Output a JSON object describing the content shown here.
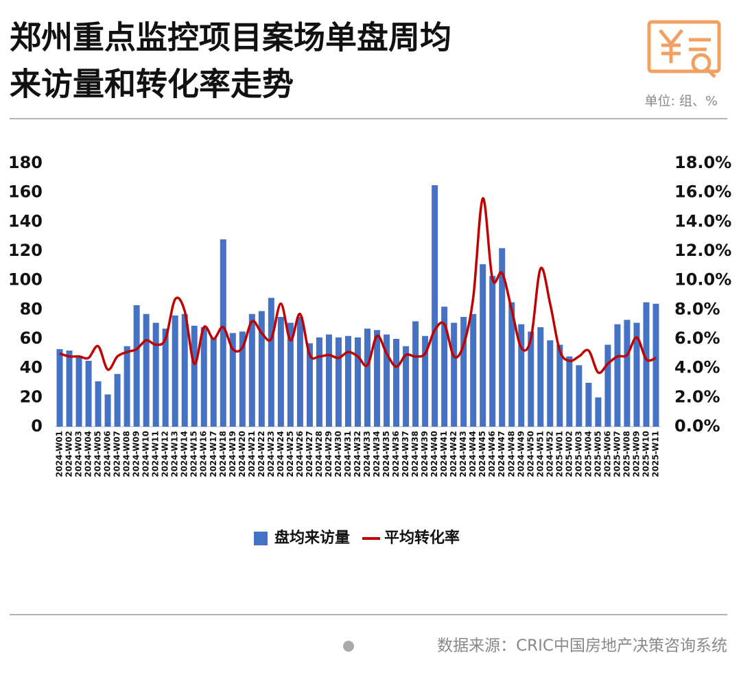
{
  "chart_data": {
    "type": "bar_line",
    "title_lines": [
      "郑州重点监控项目案场单盘周均",
      "来访量和转化率走势"
    ],
    "unit": "单位: 组、%",
    "source": "数据来源：CRIC中国房地产决策咨询系统",
    "categories": [
      "2024-W01",
      "2024-W02",
      "2024-W03",
      "2024-W04",
      "2024-W05",
      "2024-W06",
      "2024-W07",
      "2024-W08",
      "2024-W09",
      "2024-W10",
      "2024-W11",
      "2024-W12",
      "2024-W13",
      "2024-W14",
      "2024-W15",
      "2024-W16",
      "2024-W17",
      "2024-W18",
      "2024-W19",
      "2024-W20",
      "2024-W21",
      "2024-W22",
      "2024-W23",
      "2024-W24",
      "2024-W25",
      "2024-W26",
      "2024-W27",
      "2024-W28",
      "2024-W29",
      "2024-W30",
      "2024-W31",
      "2024-W32",
      "2024-W33",
      "2024-W34",
      "2024-W35",
      "2024-W36",
      "2024-W37",
      "2024-W38",
      "2024-W39",
      "2024-W40",
      "2024-W41",
      "2024-W42",
      "2024-W43",
      "2024-W44",
      "2024-W45",
      "2024-W46",
      "2024-W47",
      "2024-W48",
      "2024-W49",
      "2024-W50",
      "2024-W51",
      "2024-W52",
      "2025-W01",
      "2025-W02",
      "2025-W03",
      "2025-W04",
      "2025-W05",
      "2025-W06",
      "2025-W07",
      "2025-W08",
      "2025-W09",
      "2025-W10",
      "2025-W11"
    ],
    "series": [
      {
        "name": "盘均来访量",
        "type": "bar",
        "color": "#4472c4",
        "values": [
          53,
          52,
          48,
          45,
          31,
          22,
          36,
          55,
          83,
          77,
          71,
          67,
          76,
          77,
          69,
          68,
          61,
          128,
          64,
          65,
          77,
          79,
          88,
          75,
          71,
          75,
          57,
          61,
          63,
          61,
          62,
          61,
          67,
          66,
          63,
          60,
          55,
          72,
          62,
          165,
          82,
          71,
          75,
          77,
          111,
          103,
          122,
          85,
          70,
          65,
          68,
          59,
          56,
          48,
          42,
          30,
          20,
          56,
          70,
          73,
          71,
          85,
          84
        ]
      },
      {
        "name": "平均转化率",
        "type": "line",
        "axis": "y2",
        "color": "#c00000",
        "values": [
          5.0,
          4.8,
          4.8,
          4.7,
          5.5,
          3.9,
          4.8,
          5.1,
          5.3,
          5.9,
          5.6,
          6.0,
          8.7,
          7.9,
          4.3,
          6.8,
          6.0,
          6.8,
          5.3,
          5.4,
          7.2,
          6.4,
          6.0,
          8.4,
          5.9,
          7.7,
          4.9,
          4.8,
          4.9,
          4.7,
          5.1,
          4.8,
          4.2,
          6.2,
          5.0,
          4.1,
          4.9,
          4.8,
          5.0,
          6.6,
          7.0,
          4.8,
          5.6,
          8.8,
          15.6,
          10.1,
          10.5,
          8.0,
          5.4,
          6.0,
          10.8,
          8.4,
          5.2,
          4.5,
          4.8,
          5.2,
          3.7,
          4.3,
          4.8,
          4.9,
          6.1,
          4.6,
          4.7
        ]
      }
    ],
    "ylim": [
      0,
      180
    ],
    "yticks": [
      0,
      20,
      40,
      60,
      80,
      100,
      120,
      140,
      160,
      180
    ],
    "y2lim": [
      0,
      18
    ],
    "y2ticks": [
      {
        "value": 0,
        "label": "0.0%"
      },
      {
        "value": 2,
        "label": "2.0%"
      },
      {
        "value": 4,
        "label": "4.0%"
      },
      {
        "value": 6,
        "label": "6.0%"
      },
      {
        "value": 8,
        "label": "8.0%"
      },
      {
        "value": 10,
        "label": "10.0%"
      },
      {
        "value": 12,
        "label": "12.0%"
      },
      {
        "value": 14,
        "label": "14.0%"
      },
      {
        "value": 16,
        "label": "16.0%"
      },
      {
        "value": 18,
        "label": "18.0%"
      }
    ],
    "grid": false,
    "legend": "bottom"
  }
}
